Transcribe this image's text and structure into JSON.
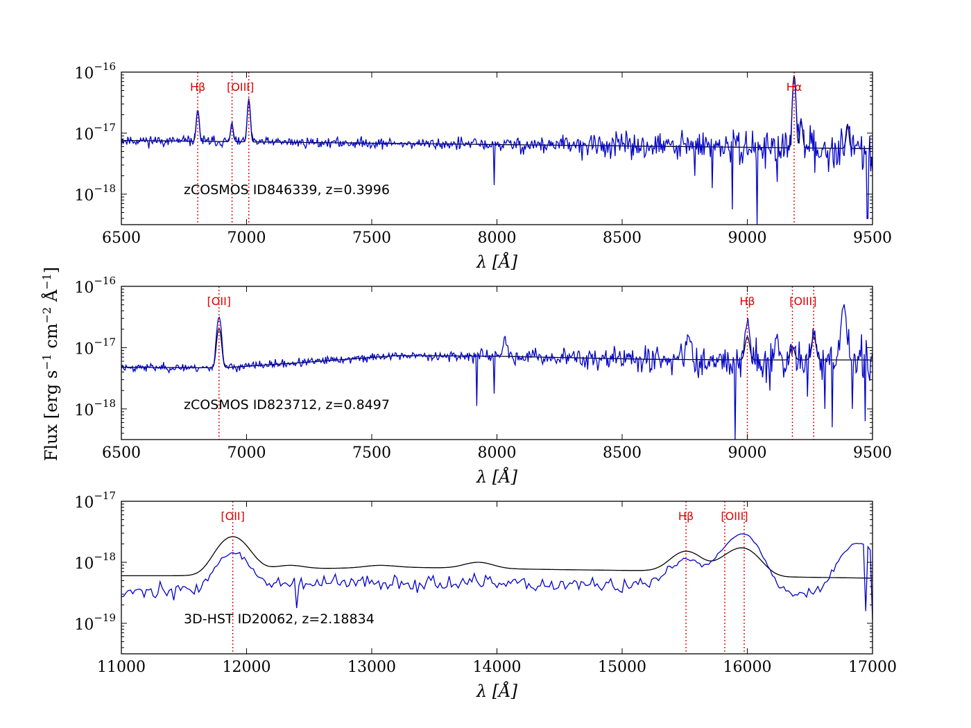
{
  "chart_data": [
    {
      "type": "line",
      "annotation": "zCOSMOS ID846339, z=0.3996",
      "xlabel_symbol": "λ",
      "xlabel_unit": "[Å]",
      "xlim": [
        6500,
        9500
      ],
      "ylim_log10": [
        -18.5,
        -16
      ],
      "ylog": true,
      "xticks": [
        6500,
        7000,
        7500,
        8000,
        8500,
        9000,
        9500
      ],
      "xtick_labels": [
        "6500",
        "7000",
        "7500",
        "8000",
        "8500",
        "9000",
        "9500"
      ],
      "yticks_log10": [
        -18,
        -17,
        -16
      ],
      "ytick_base": "10",
      "ytick_exps": [
        "−18",
        "−17",
        "−16"
      ],
      "emission_lines": [
        {
          "label": "Hβ",
          "wavelength": 6805
        },
        {
          "label": "[OIII]",
          "wavelength": 6942
        },
        {
          "label": "",
          "wavelength": 7009
        },
        {
          "label": "Hα",
          "wavelength": 9187
        }
      ],
      "continuum_log10": -17.12,
      "continuum_slope_per_A": -4.5e-05,
      "noise": 0.09,
      "noise_gain_per_A": 0.00016,
      "absorption_dips": [
        [
          7990,
          -17.85
        ],
        [
          8790,
          -17.7
        ],
        [
          8860,
          -17.9
        ],
        [
          8940,
          -18.25
        ],
        [
          9040,
          -18.5
        ],
        [
          9120,
          -17.8
        ],
        [
          9460,
          -17.6
        ],
        [
          9480,
          -18.4
        ]
      ],
      "model_peaks": [
        [
          6805,
          -16.62
        ],
        [
          6942,
          -16.86
        ],
        [
          7009,
          -16.47
        ],
        [
          9187,
          -16.05
        ],
        [
          9215,
          -16.8
        ],
        [
          9400,
          -16.85
        ]
      ],
      "obs_peaks": [
        [
          6805,
          -16.62
        ],
        [
          6942,
          -16.85
        ],
        [
          7009,
          -16.45
        ],
        [
          9187,
          -16.1
        ],
        [
          9215,
          -16.78
        ],
        [
          9400,
          -16.85
        ]
      ],
      "peak_width_A": 5,
      "seed": 11
    },
    {
      "type": "line",
      "annotation": "zCOSMOS ID823712, z=0.8497",
      "xlabel_symbol": "λ",
      "xlabel_unit": "[Å]",
      "xlim": [
        6500,
        9500
      ],
      "ylim_log10": [
        -18.5,
        -16
      ],
      "ylog": true,
      "xticks": [
        6500,
        7000,
        7500,
        8000,
        8500,
        9000,
        9500
      ],
      "xtick_labels": [
        "6500",
        "7000",
        "7500",
        "8000",
        "8500",
        "9000",
        "9500"
      ],
      "yticks_log10": [
        -18,
        -17,
        -16
      ],
      "ytick_base": "10",
      "ytick_exps": [
        "−18",
        "−17",
        "−16"
      ],
      "emission_lines": [
        {
          "label": "[OII]",
          "wavelength": 6890
        },
        {
          "label": "Hβ",
          "wavelength": 9000
        },
        {
          "label": "[OIII]",
          "wavelength": 9180
        },
        {
          "label": "",
          "wavelength": 9265
        }
      ],
      "continuum_knots": [
        [
          6500,
          -17.32
        ],
        [
          6900,
          -17.33
        ],
        [
          7200,
          -17.25
        ],
        [
          7600,
          -17.13
        ],
        [
          8000,
          -17.14
        ],
        [
          8600,
          -17.19
        ],
        [
          9000,
          -17.2
        ],
        [
          9500,
          -17.2
        ]
      ],
      "noise": 0.07,
      "noise_gain_per_A": 0.00018,
      "absorption_dips": [
        [
          7920,
          -17.95
        ],
        [
          7990,
          -17.75
        ],
        [
          8950,
          -18.5
        ],
        [
          9090,
          -17.7
        ],
        [
          9240,
          -17.8
        ],
        [
          9310,
          -18.0
        ],
        [
          9340,
          -18.3
        ],
        [
          9420,
          -18.0
        ],
        [
          9470,
          -18.2
        ]
      ],
      "model_peaks": [
        [
          6890,
          -16.68
        ],
        [
          9000,
          -16.82
        ],
        [
          9180,
          -16.98
        ],
        [
          9265,
          -16.82
        ]
      ],
      "obs_peaks": [
        [
          6890,
          -16.5
        ],
        [
          9000,
          -16.6
        ],
        [
          9180,
          -16.95
        ],
        [
          9265,
          -16.8
        ],
        [
          9385,
          -16.3
        ],
        [
          8765,
          -16.8
        ],
        [
          8030,
          -16.9
        ],
        [
          9120,
          -16.95
        ]
      ],
      "peak_width_A": 8,
      "seed": 23
    },
    {
      "type": "line",
      "annotation": "3D-HST ID20062, z=2.18834",
      "xlabel_symbol": "λ",
      "xlabel_unit": "[Å]",
      "xlim": [
        11000,
        17000
      ],
      "ylim_log10": [
        -19.5,
        -17
      ],
      "ylog": true,
      "xticks": [
        11000,
        12000,
        13000,
        14000,
        15000,
        16000,
        17000
      ],
      "xtick_labels": [
        "11000",
        "12000",
        "13000",
        "14000",
        "15000",
        "16000",
        "17000"
      ],
      "yticks_log10": [
        -19,
        -18,
        -17
      ],
      "ytick_base": "10",
      "ytick_exps": [
        "−19",
        "−18",
        "−17"
      ],
      "emission_lines": [
        {
          "label": "[OII]",
          "wavelength": 11890
        },
        {
          "label": "Hβ",
          "wavelength": 15510
        },
        {
          "label": "[OIII]",
          "wavelength": 15820
        },
        {
          "label": "",
          "wavelength": 15975
        }
      ],
      "continuum_knots": [
        [
          11000,
          -18.22
        ],
        [
          11700,
          -18.22
        ],
        [
          12100,
          -18.12
        ],
        [
          13200,
          -18.08
        ],
        [
          14500,
          -18.12
        ],
        [
          15300,
          -18.14
        ],
        [
          16300,
          -18.24
        ],
        [
          17000,
          -18.26
        ]
      ],
      "obs_offset_log10": -0.25,
      "noise": 0.13,
      "noise_gain_per_A": 0.0,
      "absorption_dips": [
        [
          12400,
          -18.75
        ],
        [
          16950,
          -18.8
        ],
        [
          17000,
          -18.95
        ]
      ],
      "model_peaks": [
        [
          11890,
          -17.58
        ],
        [
          12350,
          -18.05
        ],
        [
          13070,
          -18.05
        ],
        [
          13850,
          -18.0
        ],
        [
          15510,
          -17.82
        ],
        [
          15820,
          -18.02
        ],
        [
          15975,
          -17.8
        ]
      ],
      "obs_peaks": [
        [
          11890,
          -17.85
        ],
        [
          15510,
          -17.95
        ],
        [
          15820,
          -18.0
        ],
        [
          15975,
          -17.58
        ],
        [
          16850,
          -17.85
        ],
        [
          16940,
          -17.95
        ]
      ],
      "peak_width_A": 55,
      "seed": 37
    }
  ],
  "shared_ylabel": {
    "prefix": "Flux  [erg s",
    "exp1": "−1",
    "mid1": " cm",
    "exp2": "−2",
    "mid2": " Å",
    "exp3": "−1",
    "suffix": "]"
  },
  "colors": {
    "observed": "#0000c8",
    "model": "#000000",
    "lines": "#e00000"
  }
}
